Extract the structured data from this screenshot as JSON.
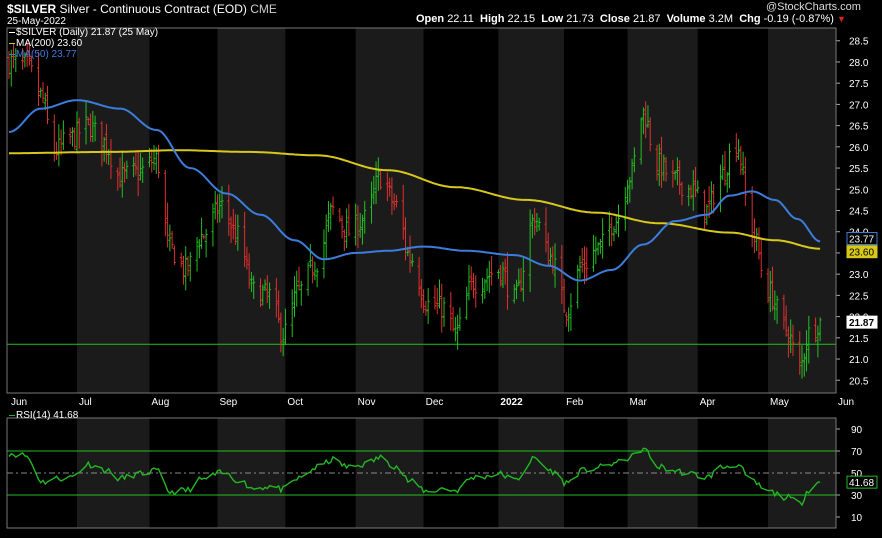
{
  "header": {
    "symbol": "$SILVER",
    "description": "Silver - Continuous Contract (EOD)",
    "exchange": "CME",
    "date": "25-May-2022",
    "watermark": "@StockCharts.com",
    "open_label": "Open",
    "open": "22.11",
    "high_label": "High",
    "high": "22.15",
    "low_label": "Low",
    "low": "21.73",
    "close_label": "Close",
    "close": "21.87",
    "volume_label": "Volume",
    "volume": "3.2M",
    "chg_label": "Chg",
    "chg": "-0.19 (-0.87%)"
  },
  "legend": [
    {
      "text": "$SILVER (Daily) 21.87 (25 May)",
      "color": "#ffffff"
    },
    {
      "text": "MA(200) 23.60",
      "color": "#ffffff"
    },
    {
      "text": "MA(50) 23.77",
      "color": "#3c7ddc"
    }
  ],
  "rsi_legend": "RSI(14) 41.68",
  "colors": {
    "up": "#22c022",
    "down": "#e03030",
    "ma200": "#d8c81a",
    "ma50": "#3c7ddc",
    "rsi": "#22b822",
    "hline": "#22c022",
    "band_dark": "#000000",
    "band_light": "#1b1b1b"
  },
  "chart_data": [
    {
      "type": "ohlc",
      "series_name": "$SILVER (Daily)",
      "x_range": [
        "2021-06-01",
        "2022-05-25"
      ],
      "ylim": [
        20.2,
        28.8
      ],
      "y_ticks": [
        "20.5",
        "21.0",
        "21.5",
        "22.0",
        "22.5",
        "23.0",
        "23.5",
        "24.0",
        "24.5",
        "25.0",
        "25.5",
        "26.0",
        "26.5",
        "27.0",
        "27.5",
        "28.0",
        "28.5"
      ],
      "x_ticks": [
        {
          "label": "Jun",
          "date": "2021-06-01"
        },
        {
          "label": "Jul",
          "date": "2021-07-01"
        },
        {
          "label": "Aug",
          "date": "2021-08-02"
        },
        {
          "label": "Sep",
          "date": "2021-09-01"
        },
        {
          "label": "Oct",
          "date": "2021-10-01"
        },
        {
          "label": "Nov",
          "date": "2021-11-01"
        },
        {
          "label": "Dec",
          "date": "2021-12-01"
        },
        {
          "label": "2022",
          "date": "2022-01-03",
          "bold": true
        },
        {
          "label": "Feb",
          "date": "2022-02-01"
        },
        {
          "label": "Mar",
          "date": "2022-03-01"
        },
        {
          "label": "Apr",
          "date": "2022-04-01"
        },
        {
          "label": "May",
          "date": "2022-05-02"
        },
        {
          "label": "Jun",
          "date": "2022-06-01"
        }
      ],
      "horizontal_line": 21.35,
      "price_labels": [
        {
          "value": "23.77",
          "y": 23.77,
          "style": "ma50"
        },
        {
          "value": "23.60",
          "y": 23.6,
          "style": "ma200"
        },
        {
          "value": "21.87",
          "y": 21.87,
          "style": "close"
        }
      ],
      "close_anchors": [
        [
          "2021-06-01",
          28.0
        ],
        [
          "2021-06-09",
          27.9
        ],
        [
          "2021-06-15",
          27.2
        ],
        [
          "2021-06-21",
          25.9
        ],
        [
          "2021-06-28",
          26.2
        ],
        [
          "2021-07-06",
          26.5
        ],
        [
          "2021-07-13",
          26.1
        ],
        [
          "2021-07-20",
          25.3
        ],
        [
          "2021-07-28",
          25.4
        ],
        [
          "2021-08-05",
          25.7
        ],
        [
          "2021-08-11",
          23.6
        ],
        [
          "2021-08-18",
          23.1
        ],
        [
          "2021-08-25",
          23.9
        ],
        [
          "2021-09-03",
          24.6
        ],
        [
          "2021-09-10",
          23.9
        ],
        [
          "2021-09-17",
          22.6
        ],
        [
          "2021-09-24",
          22.5
        ],
        [
          "2021-09-30",
          21.6
        ],
        [
          "2021-10-07",
          22.6
        ],
        [
          "2021-10-15",
          23.3
        ],
        [
          "2021-10-22",
          24.5
        ],
        [
          "2021-10-29",
          24.0
        ],
        [
          "2021-11-05",
          24.3
        ],
        [
          "2021-11-12",
          25.3
        ],
        [
          "2021-11-19",
          24.6
        ],
        [
          "2021-11-25",
          23.4
        ],
        [
          "2021-12-03",
          22.3
        ],
        [
          "2021-12-10",
          22.2
        ],
        [
          "2021-12-15",
          21.6
        ],
        [
          "2021-12-23",
          22.8
        ],
        [
          "2022-01-04",
          23.1
        ],
        [
          "2022-01-10",
          22.4
        ],
        [
          "2022-01-19",
          24.3
        ],
        [
          "2022-01-26",
          23.4
        ],
        [
          "2022-02-02",
          22.2
        ],
        [
          "2022-02-09",
          23.2
        ],
        [
          "2022-02-16",
          23.6
        ],
        [
          "2022-02-24",
          24.3
        ],
        [
          "2022-03-02",
          25.3
        ],
        [
          "2022-03-08",
          26.8
        ],
        [
          "2022-03-14",
          25.6
        ],
        [
          "2022-03-22",
          25.2
        ],
        [
          "2022-03-29",
          25.0
        ],
        [
          "2022-04-05",
          24.5
        ],
        [
          "2022-04-11",
          25.3
        ],
        [
          "2022-04-18",
          26.1
        ],
        [
          "2022-04-25",
          24.0
        ],
        [
          "2022-05-02",
          22.6
        ],
        [
          "2022-05-10",
          21.7
        ],
        [
          "2022-05-16",
          20.8
        ],
        [
          "2022-05-20",
          21.6
        ],
        [
          "2022-05-25",
          21.87
        ]
      ],
      "ma200_anchors": [
        [
          "2021-06-01",
          25.85
        ],
        [
          "2021-07-15",
          25.88
        ],
        [
          "2021-08-15",
          25.92
        ],
        [
          "2021-09-15",
          25.88
        ],
        [
          "2021-10-15",
          25.8
        ],
        [
          "2021-11-15",
          25.45
        ],
        [
          "2021-12-15",
          25.05
        ],
        [
          "2022-01-15",
          24.75
        ],
        [
          "2022-02-15",
          24.45
        ],
        [
          "2022-03-15",
          24.2
        ],
        [
          "2022-04-15",
          23.98
        ],
        [
          "2022-05-05",
          23.8
        ],
        [
          "2022-05-25",
          23.6
        ]
      ],
      "ma50_anchors": [
        [
          "2021-06-01",
          26.35
        ],
        [
          "2021-06-15",
          26.9
        ],
        [
          "2021-07-01",
          27.1
        ],
        [
          "2021-07-20",
          26.9
        ],
        [
          "2021-08-05",
          26.4
        ],
        [
          "2021-08-20",
          25.5
        ],
        [
          "2021-09-05",
          24.9
        ],
        [
          "2021-09-20",
          24.4
        ],
        [
          "2021-10-05",
          23.8
        ],
        [
          "2021-10-18",
          23.35
        ],
        [
          "2021-11-01",
          23.5
        ],
        [
          "2021-11-15",
          23.55
        ],
        [
          "2021-12-01",
          23.65
        ],
        [
          "2021-12-20",
          23.55
        ],
        [
          "2022-01-10",
          23.45
        ],
        [
          "2022-01-25",
          23.2
        ],
        [
          "2022-02-08",
          22.85
        ],
        [
          "2022-02-22",
          23.1
        ],
        [
          "2022-03-08",
          23.7
        ],
        [
          "2022-03-22",
          24.25
        ],
        [
          "2022-04-05",
          24.4
        ],
        [
          "2022-04-15",
          24.85
        ],
        [
          "2022-04-25",
          24.95
        ],
        [
          "2022-05-05",
          24.75
        ],
        [
          "2022-05-15",
          24.3
        ],
        [
          "2022-05-25",
          23.77
        ]
      ]
    },
    {
      "type": "line",
      "series_name": "RSI(14)",
      "ylim": [
        0,
        100
      ],
      "y_ticks": [
        "10",
        "30",
        "50",
        "70",
        "90"
      ],
      "reference_lines": [
        30,
        50,
        70
      ],
      "last_value": "41.68",
      "anchors": [
        [
          "2021-06-01",
          68
        ],
        [
          "2021-06-08",
          66
        ],
        [
          "2021-06-16",
          42
        ],
        [
          "2021-06-22",
          45
        ],
        [
          "2021-06-28",
          46
        ],
        [
          "2021-07-06",
          58
        ],
        [
          "2021-07-13",
          53
        ],
        [
          "2021-07-20",
          45
        ],
        [
          "2021-07-28",
          49
        ],
        [
          "2021-08-05",
          52
        ],
        [
          "2021-08-11",
          33
        ],
        [
          "2021-08-18",
          34
        ],
        [
          "2021-08-25",
          44
        ],
        [
          "2021-09-03",
          50
        ],
        [
          "2021-09-10",
          44
        ],
        [
          "2021-09-17",
          36
        ],
        [
          "2021-09-24",
          38
        ],
        [
          "2021-09-30",
          35
        ],
        [
          "2021-10-07",
          45
        ],
        [
          "2021-10-15",
          55
        ],
        [
          "2021-10-22",
          62
        ],
        [
          "2021-10-29",
          55
        ],
        [
          "2021-11-05",
          58
        ],
        [
          "2021-11-12",
          64
        ],
        [
          "2021-11-19",
          56
        ],
        [
          "2021-11-25",
          42
        ],
        [
          "2021-12-03",
          33
        ],
        [
          "2021-12-10",
          36
        ],
        [
          "2021-12-15",
          34
        ],
        [
          "2021-12-23",
          46
        ],
        [
          "2022-01-04",
          49
        ],
        [
          "2022-01-10",
          43
        ],
        [
          "2022-01-19",
          63
        ],
        [
          "2022-01-26",
          52
        ],
        [
          "2022-02-02",
          41
        ],
        [
          "2022-02-09",
          52
        ],
        [
          "2022-02-16",
          55
        ],
        [
          "2022-02-24",
          59
        ],
        [
          "2022-03-02",
          64
        ],
        [
          "2022-03-08",
          72
        ],
        [
          "2022-03-14",
          56
        ],
        [
          "2022-03-22",
          52
        ],
        [
          "2022-03-29",
          49
        ],
        [
          "2022-04-05",
          46
        ],
        [
          "2022-04-11",
          55
        ],
        [
          "2022-04-18",
          58
        ],
        [
          "2022-04-25",
          42
        ],
        [
          "2022-05-02",
          33
        ],
        [
          "2022-05-10",
          28
        ],
        [
          "2022-05-16",
          22
        ],
        [
          "2022-05-20",
          35
        ],
        [
          "2022-05-25",
          41.68
        ]
      ]
    }
  ]
}
